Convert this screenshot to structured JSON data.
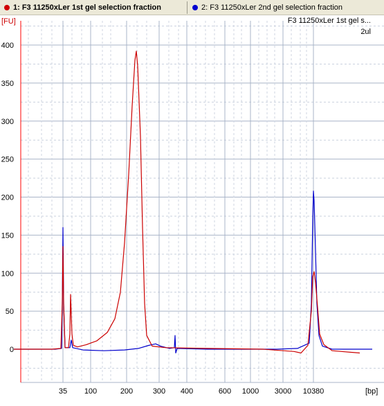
{
  "legend": {
    "series1": "1: F3 11250xLer 1st gel selection fraction",
    "series2": "2: F3 11250xLer 2nd gel selection fraction"
  },
  "chart_data": {
    "type": "line",
    "y_unit_label": "[FU]",
    "x_unit_label": "[bp]",
    "sample_title": "F3 11250xLer 1st gel s...",
    "sample_subtitle": "2ul",
    "ylim": [
      -45,
      430
    ],
    "y_ticks": [
      0,
      50,
      100,
      150,
      200,
      250,
      300,
      350,
      400
    ],
    "x_tick_labels": [
      "35",
      "100",
      "200",
      "300",
      "400",
      "600",
      "1000",
      "3000",
      "10380"
    ],
    "colors": {
      "series1": "#cc0000",
      "series2": "#0000cc",
      "axis": "#ff0000"
    },
    "series": [
      {
        "name": "1: F3 11250xLer 1st gel selection fraction",
        "color": "#cc0000",
        "points": [
          [
            20,
            0
          ],
          [
            60,
            0
          ],
          [
            75,
            0
          ],
          [
            88,
            1
          ],
          [
            90,
            60
          ],
          [
            91,
            135
          ],
          [
            92,
            60
          ],
          [
            94,
            2
          ],
          [
            99,
            2
          ],
          [
            101,
            20
          ],
          [
            102,
            72
          ],
          [
            104,
            20
          ],
          [
            106,
            5
          ],
          [
            112,
            3
          ],
          [
            125,
            6
          ],
          [
            140,
            11
          ],
          [
            155,
            22
          ],
          [
            166,
            40
          ],
          [
            174,
            75
          ],
          [
            180,
            140
          ],
          [
            186,
            230
          ],
          [
            191,
            320
          ],
          [
            195,
            380
          ],
          [
            197,
            392
          ],
          [
            199,
            372
          ],
          [
            203,
            280
          ],
          [
            206,
            160
          ],
          [
            209,
            60
          ],
          [
            212,
            18
          ],
          [
            220,
            4
          ],
          [
            240,
            2
          ],
          [
            300,
            1
          ],
          [
            380,
            0
          ],
          [
            425,
            -3
          ],
          [
            435,
            -5
          ],
          [
            445,
            5
          ],
          [
            450,
            50
          ],
          [
            452,
            95
          ],
          [
            454,
            102
          ],
          [
            456,
            88
          ],
          [
            459,
            55
          ],
          [
            462,
            20
          ],
          [
            468,
            6
          ],
          [
            480,
            -2
          ],
          [
            520,
            -5
          ]
        ]
      },
      {
        "name": "2: F3 11250xLer 2nd gel selection fraction",
        "color": "#0000cc",
        "points": [
          [
            20,
            0
          ],
          [
            80,
            0
          ],
          [
            89,
            1
          ],
          [
            90,
            60
          ],
          [
            91,
            160
          ],
          [
            92,
            60
          ],
          [
            94,
            2
          ],
          [
            101,
            2
          ],
          [
            103,
            12
          ],
          [
            105,
            2
          ],
          [
            120,
            -1
          ],
          [
            150,
            -2
          ],
          [
            180,
            -1
          ],
          [
            200,
            1
          ],
          [
            215,
            5
          ],
          [
            225,
            7
          ],
          [
            232,
            4
          ],
          [
            245,
            1
          ],
          [
            252,
            2
          ],
          [
            253,
            18
          ],
          [
            254,
            -5
          ],
          [
            256,
            1
          ],
          [
            300,
            0
          ],
          [
            350,
            0
          ],
          [
            400,
            0
          ],
          [
            430,
            1
          ],
          [
            447,
            8
          ],
          [
            450,
            60
          ],
          [
            452,
            170
          ],
          [
            453,
            208
          ],
          [
            454,
            195
          ],
          [
            456,
            130
          ],
          [
            458,
            60
          ],
          [
            461,
            18
          ],
          [
            466,
            4
          ],
          [
            480,
            0
          ],
          [
            538,
            0
          ]
        ]
      }
    ]
  }
}
